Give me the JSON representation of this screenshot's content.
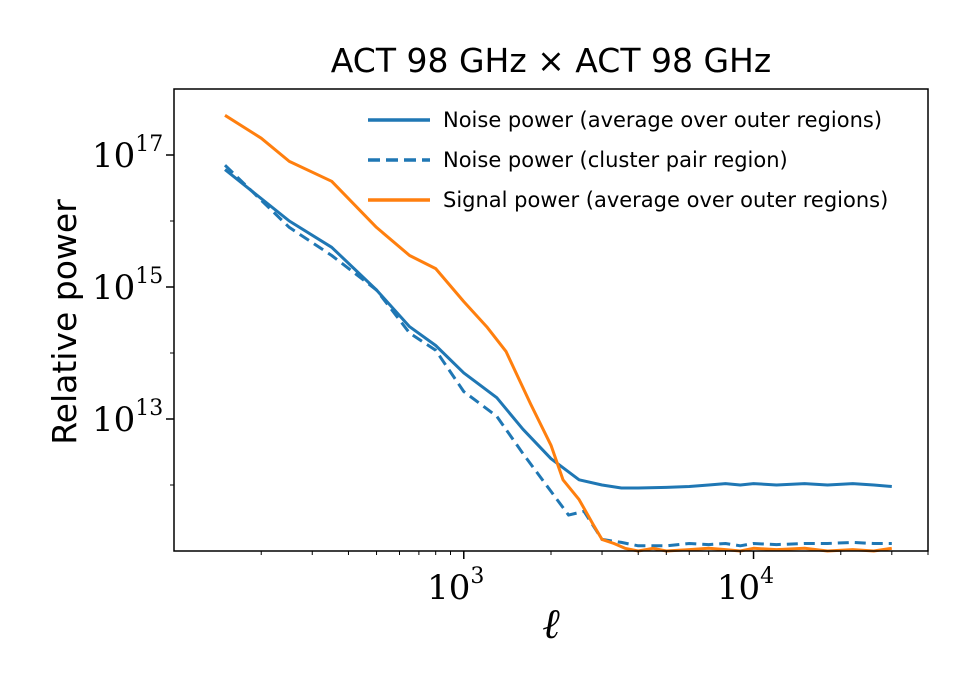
{
  "chart_data": {
    "type": "line",
    "title": "ACT 98 GHz × ACT 98 GHz",
    "xlabel": "ℓ",
    "ylabel": "Relative power",
    "xscale": "log",
    "yscale": "log",
    "xlim": [
      100,
      40000
    ],
    "ylim": [
      100000000000.0,
      1e+18
    ],
    "xticks": [
      {
        "value": 1000,
        "base": "10",
        "exp": "3"
      },
      {
        "value": 10000,
        "base": "10",
        "exp": "4"
      }
    ],
    "yticks": [
      {
        "value": 10000000000000.0,
        "base": "10",
        "exp": "13"
      },
      {
        "value": 1000000000000000.0,
        "base": "10",
        "exp": "15"
      },
      {
        "value": 1e+17,
        "base": "10",
        "exp": "17"
      }
    ],
    "legend_position": "top-right",
    "series": [
      {
        "name": "Noise power (average over outer regions)",
        "color": "#1f77b4",
        "style": "solid",
        "x": [
          150,
          250,
          350,
          500,
          650,
          800,
          1000,
          1300,
          1600,
          2000,
          2500,
          3000,
          3500,
          4000,
          5000,
          6000,
          7000,
          8000,
          9000,
          10000,
          12000,
          15000,
          18000,
          22000,
          26000,
          30000
        ],
        "y": [
          6e+16,
          1e+16,
          4000000000000000.0,
          900000000000000.0,
          250000000000000.0,
          130000000000000.0,
          50000000000000.0,
          21000000000000.0,
          7000000000000.0,
          2500000000000.0,
          1200000000000.0,
          1000000000000.0,
          900000000000.0,
          900000000000.0,
          920000000000.0,
          950000000000.0,
          1000000000000.0,
          1050000000000.0,
          1000000000000.0,
          1050000000000.0,
          1000000000000.0,
          1050000000000.0,
          1000000000000.0,
          1050000000000.0,
          1000000000000.0,
          950000000000.0
        ]
      },
      {
        "name": "Noise power (cluster pair region)",
        "color": "#1f77b4",
        "style": "dashed",
        "x": [
          150,
          250,
          350,
          500,
          650,
          800,
          1000,
          1300,
          1600,
          2000,
          2300,
          2600,
          3000,
          3500,
          4000,
          5000,
          6000,
          7000,
          8000,
          9000,
          10000,
          12000,
          15000,
          18000,
          22000,
          26000,
          30000
        ],
        "y": [
          7e+16,
          8000000000000000.0,
          3000000000000000.0,
          900000000000000.0,
          200000000000000.0,
          110000000000000.0,
          26000000000000.0,
          11000000000000.0,
          3000000000000.0,
          800000000000.0,
          350000000000.0,
          400000000000.0,
          150000000000.0,
          135000000000.0,
          120000000000.0,
          120000000000.0,
          130000000000.0,
          125000000000.0,
          130000000000.0,
          120000000000.0,
          130000000000.0,
          125000000000.0,
          130000000000.0,
          130000000000.0,
          135000000000.0,
          130000000000.0,
          130000000000.0
        ]
      },
      {
        "name": "Signal power (average over outer regions)",
        "color": "#ff7f0e",
        "style": "solid",
        "x": [
          150,
          200,
          250,
          350,
          500,
          650,
          800,
          1000,
          1200,
          1400,
          1700,
          2000,
          2200,
          2500,
          2800,
          3000,
          3300,
          3600,
          4000,
          4500,
          5000,
          6000,
          7000,
          8000,
          9000,
          10000,
          12000,
          15000,
          18000,
          22000,
          26000,
          30000
        ],
        "y": [
          4e+17,
          1.8e+17,
          8e+16,
          4e+16,
          8000000000000000.0,
          3000000000000000.0,
          1900000000000000.0,
          600000000000000.0,
          250000000000000.0,
          105000000000000.0,
          17000000000000.0,
          4000000000000.0,
          1200000000000.0,
          600000000000.0,
          250000000000.0,
          150000000000.0,
          130000000000.0,
          110000000000.0,
          100000000000.0,
          110000000000.0,
          100000000000.0,
          105000000000.0,
          110000000000.0,
          105000000000.0,
          100000000000.0,
          110000000000.0,
          105000000000.0,
          110000000000.0,
          100000000000.0,
          105000000000.0,
          100000000000.0,
          110000000000.0
        ]
      }
    ]
  }
}
